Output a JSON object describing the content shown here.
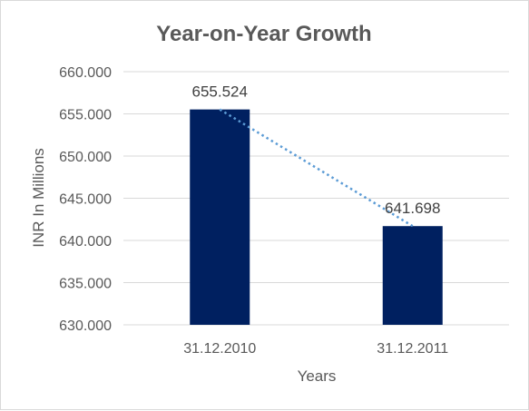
{
  "chart_data": {
    "type": "bar",
    "title": "Year-on-Year Growth",
    "xlabel": "Years",
    "ylabel": "INR In Millions",
    "categories": [
      "31.12.2010",
      "31.12.2011"
    ],
    "values": [
      655.524,
      641.698
    ],
    "data_labels": [
      "655.524",
      "641.698"
    ],
    "ylim": [
      630,
      660
    ],
    "yticks": [
      630,
      635,
      640,
      645,
      650,
      655,
      660
    ],
    "ytick_labels": [
      "630.000",
      "635.000",
      "640.000",
      "645.000",
      "650.000",
      "655.000",
      "660.000"
    ],
    "grid": true,
    "legend": "none",
    "trendline": "linear (dotted)",
    "colors": {
      "bar": "#002060",
      "trendline": "#5b9bd5",
      "grid": "#d9d9d9",
      "text": "#595959"
    }
  }
}
